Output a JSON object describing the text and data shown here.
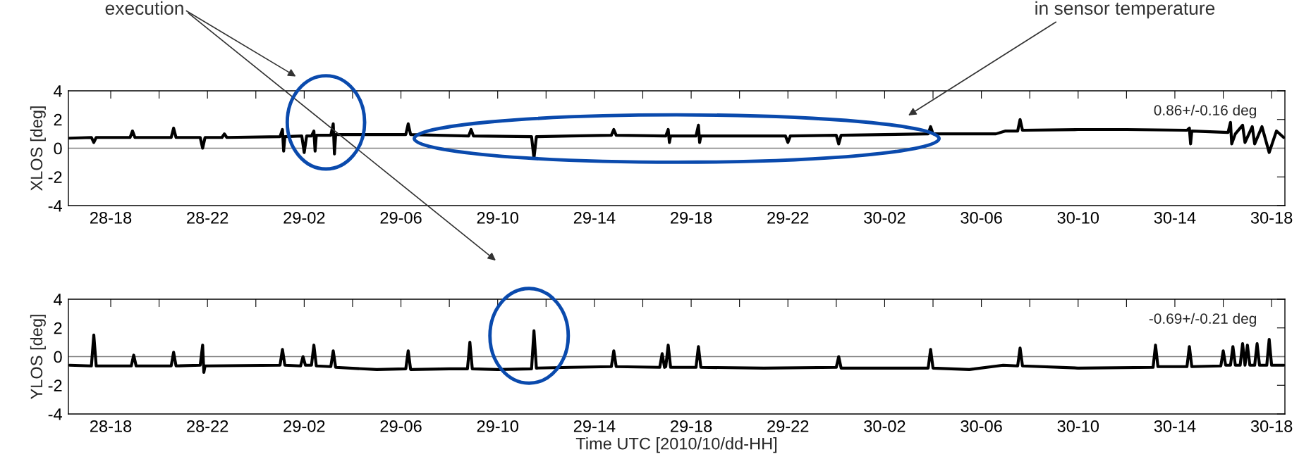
{
  "chart_data": [
    {
      "type": "line",
      "ylabel": "XLOS [deg]",
      "xlim": [
        "2010-10-28T16:15",
        "2010-10-30T18:33"
      ],
      "ylim": [
        -4,
        4
      ],
      "yticks": [
        -4,
        -2,
        0,
        2,
        4
      ],
      "xticks": [
        {
          "value": "2010-10-28T18:00",
          "label": "28-18"
        },
        {
          "value": "2010-10-28T20:00",
          "label": null
        },
        {
          "value": "2010-10-28T22:00",
          "label": "28-22"
        },
        {
          "value": "2010-10-29T00:00",
          "label": null
        },
        {
          "value": "2010-10-29T02:00",
          "label": "29-02"
        },
        {
          "value": "2010-10-29T04:00",
          "label": null
        },
        {
          "value": "2010-10-29T06:00",
          "label": "29-06"
        },
        {
          "value": "2010-10-29T08:00",
          "label": null
        },
        {
          "value": "2010-10-29T10:00",
          "label": "29-10"
        },
        {
          "value": "2010-10-29T12:00",
          "label": null
        },
        {
          "value": "2010-10-29T14:00",
          "label": "29-14"
        },
        {
          "value": "2010-10-29T16:00",
          "label": null
        },
        {
          "value": "2010-10-29T18:00",
          "label": "29-18"
        },
        {
          "value": "2010-10-29T20:00",
          "label": null
        },
        {
          "value": "2010-10-29T22:00",
          "label": "29-22"
        },
        {
          "value": "2010-10-30T00:00",
          "label": null
        },
        {
          "value": "2010-10-30T02:00",
          "label": "30-02"
        },
        {
          "value": "2010-10-30T04:00",
          "label": null
        },
        {
          "value": "2010-10-30T06:00",
          "label": "30-06"
        },
        {
          "value": "2010-10-30T08:00",
          "label": null
        },
        {
          "value": "2010-10-30T10:00",
          "label": "30-10"
        },
        {
          "value": "2010-10-30T12:00",
          "label": null
        },
        {
          "value": "2010-10-30T14:00",
          "label": "30-14"
        },
        {
          "value": "2010-10-30T16:00",
          "label": null
        },
        {
          "value": "2010-10-30T18:00",
          "label": "30-18"
        }
      ],
      "marker": "none",
      "line_style": "solid",
      "grid": false,
      "legend": false,
      "ref_lines": [
        {
          "axis": "y",
          "value": 0,
          "color": "#808080"
        }
      ],
      "annotations": [
        "execution",
        "in sensor temperature",
        "0.86+/-0.16 deg"
      ],
      "series": [
        {
          "color": "#000000",
          "x": [
            "2010-10-28T16:18",
            "2010-10-28T17:12",
            "2010-10-28T17:18",
            "2010-10-28T17:24",
            "2010-10-28T18:48",
            "2010-10-28T18:54",
            "2010-10-28T19:00",
            "2010-10-28T20:30",
            "2010-10-28T20:36",
            "2010-10-28T20:42",
            "2010-10-28T21:42",
            "2010-10-28T21:48",
            "2010-10-28T21:54",
            "2010-10-28T22:36",
            "2010-10-28T22:42",
            "2010-10-28T22:48",
            "2010-10-29T01:00",
            "2010-10-29T01:06",
            "2010-10-29T01:09",
            "2010-10-29T01:12",
            "2010-10-29T01:54",
            "2010-10-29T02:00",
            "2010-10-29T02:06",
            "2010-10-29T02:18",
            "2010-10-29T02:24",
            "2010-10-29T02:27",
            "2010-10-29T02:30",
            "2010-10-29T03:06",
            "2010-10-29T03:12",
            "2010-10-29T03:15",
            "2010-10-29T03:18",
            "2010-10-29T04:30",
            "2010-10-29T06:12",
            "2010-10-29T06:18",
            "2010-10-29T06:24",
            "2010-10-29T07:30",
            "2010-10-29T08:48",
            "2010-10-29T08:54",
            "2010-10-29T09:00",
            "2010-10-29T11:24",
            "2010-10-29T11:30",
            "2010-10-29T11:36",
            "2010-10-29T13:00",
            "2010-10-29T14:42",
            "2010-10-29T14:48",
            "2010-10-29T14:54",
            "2010-10-29T16:57",
            "2010-10-29T17:03",
            "2010-10-29T17:06",
            "2010-10-29T17:09",
            "2010-10-29T18:12",
            "2010-10-29T18:18",
            "2010-10-29T18:21",
            "2010-10-29T18:24",
            "2010-10-29T20:00",
            "2010-10-29T21:54",
            "2010-10-29T22:00",
            "2010-10-29T22:06",
            "2010-10-30T00:00",
            "2010-10-30T00:06",
            "2010-10-30T00:12",
            "2010-10-30T02:00",
            "2010-10-30T03:48",
            "2010-10-30T03:54",
            "2010-10-30T04:00",
            "2010-10-30T06:36",
            "2010-10-30T07:00",
            "2010-10-30T07:30",
            "2010-10-30T07:36",
            "2010-10-30T07:42",
            "2010-10-30T10:00",
            "2010-10-30T12:00",
            "2010-10-30T14:30",
            "2010-10-30T14:36",
            "2010-10-30T14:39",
            "2010-10-30T14:42",
            "2010-10-30T16:12",
            "2010-10-30T16:18",
            "2010-10-30T16:21",
            "2010-10-30T16:30",
            "2010-10-30T16:48",
            "2010-10-30T16:54",
            "2010-10-30T17:12",
            "2010-10-30T17:18",
            "2010-10-30T17:36",
            "2010-10-30T17:54",
            "2010-10-30T18:12",
            "2010-10-30T18:30"
          ],
          "values": [
            0.7,
            0.75,
            0.4,
            0.75,
            0.75,
            1.2,
            0.75,
            0.75,
            1.4,
            0.75,
            0.75,
            0.0,
            0.75,
            0.75,
            1.0,
            0.75,
            0.8,
            1.3,
            -0.2,
            0.8,
            0.85,
            -0.3,
            0.85,
            0.85,
            1.2,
            -0.2,
            0.9,
            0.9,
            1.7,
            -0.4,
            0.95,
            0.95,
            0.95,
            1.7,
            0.95,
            0.9,
            0.85,
            1.3,
            0.85,
            0.8,
            -0.7,
            0.8,
            0.85,
            0.9,
            1.3,
            0.9,
            0.85,
            1.3,
            0.4,
            0.85,
            0.85,
            1.6,
            0.4,
            0.85,
            0.85,
            0.85,
            0.4,
            0.85,
            0.9,
            0.3,
            0.9,
            0.95,
            1.0,
            1.5,
            1.0,
            1.0,
            1.2,
            1.2,
            2.0,
            1.25,
            1.3,
            1.3,
            1.25,
            1.4,
            0.3,
            1.2,
            1.1,
            1.8,
            0.3,
            1.0,
            1.6,
            0.4,
            1.5,
            0.3,
            1.5,
            -0.3,
            1.2,
            0.75
          ]
        }
      ]
    },
    {
      "type": "line",
      "ylabel": "YLOS [deg]",
      "xlabel": "Time UTC [2010/10/dd-HH]",
      "xlim": [
        "2010-10-28T16:15",
        "2010-10-30T18:33"
      ],
      "ylim": [
        -4,
        4
      ],
      "yticks": [
        -4,
        -2,
        0,
        2,
        4
      ],
      "xticks": [
        {
          "value": "2010-10-28T18:00",
          "label": "28-18"
        },
        {
          "value": "2010-10-28T20:00",
          "label": null
        },
        {
          "value": "2010-10-28T22:00",
          "label": "28-22"
        },
        {
          "value": "2010-10-29T00:00",
          "label": null
        },
        {
          "value": "2010-10-29T02:00",
          "label": "29-02"
        },
        {
          "value": "2010-10-29T04:00",
          "label": null
        },
        {
          "value": "2010-10-29T06:00",
          "label": "29-06"
        },
        {
          "value": "2010-10-29T08:00",
          "label": null
        },
        {
          "value": "2010-10-29T10:00",
          "label": "29-10"
        },
        {
          "value": "2010-10-29T12:00",
          "label": null
        },
        {
          "value": "2010-10-29T14:00",
          "label": "29-14"
        },
        {
          "value": "2010-10-29T16:00",
          "label": null
        },
        {
          "value": "2010-10-29T18:00",
          "label": "29-18"
        },
        {
          "value": "2010-10-29T20:00",
          "label": null
        },
        {
          "value": "2010-10-29T22:00",
          "label": "29-22"
        },
        {
          "value": "2010-10-30T00:00",
          "label": null
        },
        {
          "value": "2010-10-30T02:00",
          "label": "30-02"
        },
        {
          "value": "2010-10-30T04:00",
          "label": null
        },
        {
          "value": "2010-10-30T06:00",
          "label": "30-06"
        },
        {
          "value": "2010-10-30T08:00",
          "label": null
        },
        {
          "value": "2010-10-30T10:00",
          "label": "30-10"
        },
        {
          "value": "2010-10-30T12:00",
          "label": null
        },
        {
          "value": "2010-10-30T14:00",
          "label": "30-14"
        },
        {
          "value": "2010-10-30T16:00",
          "label": null
        },
        {
          "value": "2010-10-30T18:00",
          "label": "30-18"
        }
      ],
      "marker": "none",
      "line_style": "solid",
      "grid": false,
      "legend": false,
      "ref_lines": [
        {
          "axis": "y",
          "value": 0,
          "color": "#808080"
        }
      ],
      "annotations": [
        "-0.69+/-0.21 deg"
      ],
      "series": [
        {
          "color": "#000000",
          "x": [
            "2010-10-28T16:18",
            "2010-10-28T17:12",
            "2010-10-28T17:18",
            "2010-10-28T17:24",
            "2010-10-28T18:51",
            "2010-10-28T18:57",
            "2010-10-28T19:03",
            "2010-10-28T20:30",
            "2010-10-28T20:36",
            "2010-10-28T20:42",
            "2010-10-28T21:42",
            "2010-10-28T21:48",
            "2010-10-28T21:51",
            "2010-10-28T21:54",
            "2010-10-29T01:00",
            "2010-10-29T01:06",
            "2010-10-29T01:12",
            "2010-10-29T01:51",
            "2010-10-29T01:57",
            "2010-10-29T02:03",
            "2010-10-29T02:18",
            "2010-10-29T02:24",
            "2010-10-29T02:30",
            "2010-10-29T03:06",
            "2010-10-29T03:12",
            "2010-10-29T03:18",
            "2010-10-29T05:00",
            "2010-10-29T06:12",
            "2010-10-29T06:18",
            "2010-10-29T06:24",
            "2010-10-29T08:00",
            "2010-10-29T08:45",
            "2010-10-29T08:51",
            "2010-10-29T08:57",
            "2010-10-29T10:00",
            "2010-10-29T11:24",
            "2010-10-29T11:30",
            "2010-10-29T11:36",
            "2010-10-29T13:00",
            "2010-10-29T14:42",
            "2010-10-29T14:48",
            "2010-10-29T14:54",
            "2010-10-29T16:42",
            "2010-10-29T16:48",
            "2010-10-29T16:54",
            "2010-10-29T16:57",
            "2010-10-29T17:03",
            "2010-10-29T17:09",
            "2010-10-29T18:12",
            "2010-10-29T18:18",
            "2010-10-29T18:24",
            "2010-10-29T21:00",
            "2010-10-30T00:00",
            "2010-10-30T00:06",
            "2010-10-30T00:12",
            "2010-10-30T02:00",
            "2010-10-30T03:48",
            "2010-10-30T03:54",
            "2010-10-30T04:00",
            "2010-10-30T05:30",
            "2010-10-30T06:54",
            "2010-10-30T07:30",
            "2010-10-30T07:36",
            "2010-10-30T07:42",
            "2010-10-30T10:00",
            "2010-10-30T13:06",
            "2010-10-30T13:12",
            "2010-10-30T13:18",
            "2010-10-30T14:30",
            "2010-10-30T14:36",
            "2010-10-30T14:42",
            "2010-10-30T15:54",
            "2010-10-30T16:00",
            "2010-10-30T16:06",
            "2010-10-30T16:18",
            "2010-10-30T16:24",
            "2010-10-30T16:30",
            "2010-10-30T16:42",
            "2010-10-30T16:48",
            "2010-10-30T16:54",
            "2010-10-30T17:00",
            "2010-10-30T17:06",
            "2010-10-30T17:18",
            "2010-10-30T17:24",
            "2010-10-30T17:30",
            "2010-10-30T17:48",
            "2010-10-30T17:54",
            "2010-10-30T18:00",
            "2010-10-30T18:30"
          ],
          "values": [
            -0.6,
            -0.65,
            1.5,
            -0.65,
            -0.65,
            0.1,
            -0.65,
            -0.65,
            0.3,
            -0.65,
            -0.6,
            0.8,
            -1.1,
            -0.65,
            -0.6,
            0.5,
            -0.6,
            -0.65,
            0.0,
            -0.6,
            -0.6,
            0.8,
            -0.65,
            -0.7,
            0.4,
            -0.75,
            -0.9,
            -0.85,
            0.4,
            -0.9,
            -0.85,
            -0.85,
            1.0,
            -0.85,
            -0.9,
            -0.85,
            1.8,
            -0.8,
            -0.75,
            -0.7,
            0.4,
            -0.7,
            -0.75,
            0.2,
            -0.75,
            -0.7,
            0.8,
            -0.75,
            -0.75,
            0.7,
            -0.75,
            -0.8,
            -0.75,
            0.0,
            -0.8,
            -0.8,
            -0.8,
            0.5,
            -0.8,
            -0.9,
            -0.6,
            -0.65,
            0.6,
            -0.65,
            -0.8,
            -0.75,
            0.8,
            -0.7,
            -0.7,
            0.7,
            -0.7,
            -0.65,
            0.4,
            -0.6,
            -0.6,
            0.7,
            -0.6,
            -0.6,
            0.9,
            -0.6,
            0.8,
            -0.6,
            -0.6,
            0.9,
            -0.6,
            -0.6,
            1.2,
            -0.6,
            -0.6
          ]
        }
      ]
    }
  ]
}
